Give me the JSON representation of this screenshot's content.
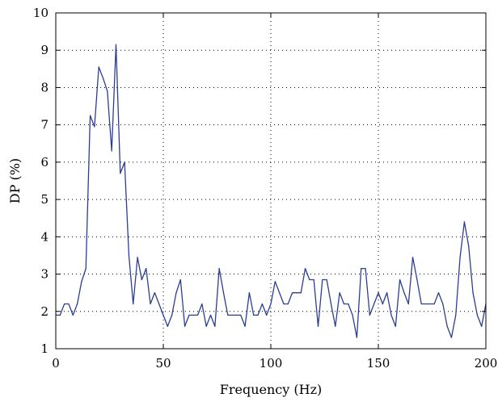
{
  "chart_data": {
    "type": "line",
    "title": "",
    "xlabel": "Frequency (Hz)",
    "ylabel": "DP (%)",
    "xlim": [
      0,
      200
    ],
    "ylim": [
      1,
      10
    ],
    "x_ticks": [
      0,
      50,
      100,
      150,
      200
    ],
    "y_ticks": [
      1,
      2,
      3,
      4,
      5,
      6,
      7,
      8,
      9,
      10
    ],
    "grid": true,
    "grid_style": "dotted",
    "legend": "none",
    "line_color": "#2c3e94",
    "series": [
      {
        "x": [
          0,
          2,
          4,
          6,
          8,
          10,
          12,
          14,
          16,
          18,
          20,
          22,
          24,
          26,
          28,
          30,
          32,
          34,
          36,
          38,
          40,
          42,
          44,
          46,
          48,
          50,
          52,
          54,
          56,
          58,
          60,
          62,
          64,
          66,
          68,
          70,
          72,
          74,
          76,
          78,
          80,
          82,
          84,
          86,
          88,
          90,
          92,
          94,
          96,
          98,
          100,
          102,
          104,
          106,
          108,
          110,
          112,
          114,
          116,
          118,
          120,
          122,
          124,
          126,
          128,
          130,
          132,
          134,
          136,
          138,
          140,
          142,
          144,
          146,
          148,
          150,
          152,
          154,
          156,
          158,
          160,
          162,
          164,
          166,
          168,
          170,
          172,
          174,
          176,
          178,
          180,
          182,
          184,
          186,
          188,
          190,
          192,
          194,
          196,
          198,
          200
        ],
        "values": [
          1.9,
          1.9,
          2.2,
          2.2,
          1.9,
          2.2,
          2.8,
          3.15,
          7.25,
          6.95,
          8.55,
          8.25,
          7.9,
          6.3,
          9.15,
          5.7,
          6.0,
          3.5,
          2.2,
          3.45,
          2.85,
          3.15,
          2.2,
          2.5,
          2.2,
          1.9,
          1.6,
          1.9,
          2.5,
          2.85,
          1.6,
          1.9,
          1.9,
          1.9,
          2.2,
          1.6,
          1.9,
          1.6,
          3.15,
          2.5,
          1.9,
          1.9,
          1.9,
          1.9,
          1.6,
          2.5,
          1.9,
          1.9,
          2.2,
          1.9,
          2.2,
          2.8,
          2.5,
          2.2,
          2.2,
          2.5,
          2.5,
          2.5,
          3.15,
          2.85,
          2.85,
          1.6,
          2.85,
          2.85,
          2.2,
          1.6,
          2.5,
          2.2,
          2.2,
          1.9,
          1.3,
          3.15,
          3.15,
          1.9,
          2.2,
          2.5,
          2.2,
          2.5,
          1.9,
          1.6,
          2.85,
          2.5,
          2.2,
          3.45,
          2.85,
          2.2,
          2.2,
          2.2,
          2.2,
          2.5,
          2.2,
          1.6,
          1.3,
          1.9,
          3.45,
          4.4,
          3.75,
          2.5,
          1.9,
          1.6,
          2.2
        ]
      }
    ]
  }
}
